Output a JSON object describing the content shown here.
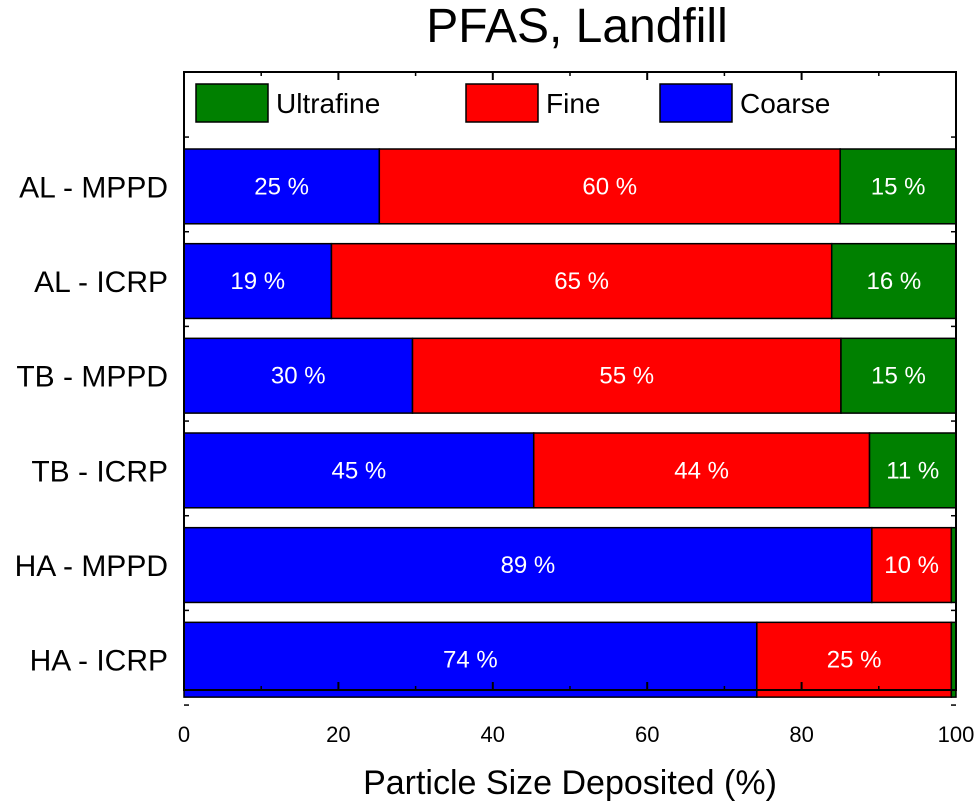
{
  "chart_data": {
    "type": "bar",
    "orientation": "horizontal",
    "stacked": true,
    "title": "PFAS, Landfill",
    "xlabel": "Particle Size Deposited (%)",
    "ylabel": "",
    "xlim": [
      0,
      100
    ],
    "xticks": [
      0,
      20,
      40,
      60,
      80,
      100
    ],
    "grid": false,
    "legend_position": "top",
    "categories": [
      "AL - MPPD",
      "AL - ICRP",
      "TB - MPPD",
      "TB - ICRP",
      "HA - MPPD",
      "HA - ICRP"
    ],
    "series": [
      {
        "name": "Coarse",
        "color": "#0000ff",
        "values": [
          25.3,
          19.1,
          29.6,
          45.3,
          89.1,
          74.2
        ],
        "labels": [
          "25 %",
          "19 %",
          "30 %",
          "45 %",
          "89 %",
          "74 %"
        ]
      },
      {
        "name": "Fine",
        "color": "#ff0000",
        "values": [
          59.7,
          64.8,
          55.5,
          43.5,
          10.3,
          25.2
        ],
        "labels": [
          "60 %",
          "65 %",
          "55 %",
          "44 %",
          "10 %",
          "25 %"
        ]
      },
      {
        "name": "Ultrafine",
        "color": "#008000",
        "values": [
          15.0,
          16.1,
          14.9,
          11.2,
          0.6,
          0.6
        ],
        "labels": [
          "15 %",
          "16 %",
          "15 %",
          "11 %",
          "",
          ""
        ]
      }
    ],
    "legend_order": [
      "Ultrafine",
      "Fine",
      "Coarse"
    ]
  }
}
